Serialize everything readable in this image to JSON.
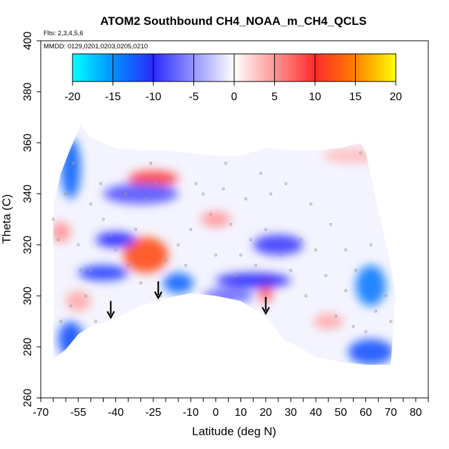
{
  "chart_data": {
    "type": "heatmap",
    "title": "ATOM2 Southbound CH4_NOAA_m_CH4_QCLS",
    "flights_label": "Flts: 2,3,4,5,6",
    "dates_label": "MMDD: 0129,0201,0203,0205,0210",
    "xlabel": "Latitude (deg N)",
    "ylabel": "Theta (C)",
    "xlim": [
      -70,
      85
    ],
    "ylim": [
      260,
      400
    ],
    "x_ticks": [
      -70,
      -55,
      -40,
      -25,
      -10,
      0,
      10,
      20,
      30,
      40,
      50,
      60,
      70,
      80
    ],
    "x_minor_ticks": [
      -65,
      -60,
      -50,
      -45,
      -35,
      -30,
      -20,
      -15,
      -5,
      5,
      15,
      25,
      35,
      45,
      55,
      65,
      75,
      85
    ],
    "y_ticks": [
      260,
      280,
      300,
      320,
      340,
      360,
      380,
      400
    ],
    "grid": false,
    "colorbar": {
      "ticks": [
        -20,
        -15,
        -10,
        -5,
        0,
        5,
        10,
        15,
        20
      ],
      "range": [
        -20,
        20
      ],
      "colors": [
        "#00ffff",
        "#0080ff",
        "#2020ff",
        "#ffffff",
        "#ff2020",
        "#ff8000",
        "#ffff00"
      ],
      "placement": "top"
    },
    "envelope": {
      "lower": [
        [
          -65,
          275
        ],
        [
          -60,
          279
        ],
        [
          -55,
          285
        ],
        [
          -50,
          288
        ],
        [
          -43,
          290
        ],
        [
          -38,
          292
        ],
        [
          -30,
          296
        ],
        [
          -20,
          299
        ],
        [
          -10,
          301
        ],
        [
          0,
          300
        ],
        [
          10,
          298
        ],
        [
          20,
          292
        ],
        [
          27,
          283
        ],
        [
          33,
          280
        ],
        [
          40,
          276
        ],
        [
          50,
          274
        ],
        [
          60,
          273
        ],
        [
          70,
          273
        ]
      ],
      "upper": [
        [
          -65,
          335
        ],
        [
          -62,
          348
        ],
        [
          -58,
          358
        ],
        [
          -54,
          367
        ],
        [
          -50,
          362
        ],
        [
          -40,
          358
        ],
        [
          -30,
          357
        ],
        [
          -20,
          357
        ],
        [
          -10,
          356
        ],
        [
          0,
          355
        ],
        [
          10,
          355
        ],
        [
          20,
          358
        ],
        [
          30,
          357
        ],
        [
          40,
          357
        ],
        [
          50,
          358
        ],
        [
          58,
          360
        ],
        [
          60,
          356
        ],
        [
          70,
          312
        ],
        [
          72,
          300
        ]
      ]
    },
    "anomalies": [
      {
        "x": -28,
        "y": 316,
        "value": 12,
        "rx": 9,
        "ry": 7
      },
      {
        "x": -25,
        "y": 346,
        "value": 9,
        "rx": 10,
        "ry": 3
      },
      {
        "x": 20,
        "y": 303,
        "value": 7,
        "rx": 3,
        "ry": 6
      },
      {
        "x": -55,
        "y": 298,
        "value": 4,
        "rx": 5,
        "ry": 4
      },
      {
        "x": -62,
        "y": 325,
        "value": 5,
        "rx": 4,
        "ry": 4
      },
      {
        "x": 0,
        "y": 330,
        "value": 5,
        "rx": 6,
        "ry": 3
      },
      {
        "x": 45,
        "y": 290,
        "value": 4,
        "rx": 6,
        "ry": 3
      },
      {
        "x": 55,
        "y": 355,
        "value": 3,
        "rx": 12,
        "ry": 3
      },
      {
        "x": -58,
        "y": 350,
        "value": -13,
        "rx": 4,
        "ry": 12
      },
      {
        "x": -58,
        "y": 283,
        "value": -12,
        "rx": 5,
        "ry": 7
      },
      {
        "x": -15,
        "y": 305,
        "value": -13,
        "rx": 6,
        "ry": 4
      },
      {
        "x": -45,
        "y": 309,
        "value": -11,
        "rx": 10,
        "ry": 3
      },
      {
        "x": -40,
        "y": 322,
        "value": -10,
        "rx": 8,
        "ry": 3
      },
      {
        "x": 62,
        "y": 304,
        "value": -14,
        "rx": 6,
        "ry": 8
      },
      {
        "x": 62,
        "y": 278,
        "value": -12,
        "rx": 9,
        "ry": 5
      },
      {
        "x": 15,
        "y": 306,
        "value": -10,
        "rx": 15,
        "ry": 3
      },
      {
        "x": -30,
        "y": 340,
        "value": -8,
        "rx": 15,
        "ry": 4
      },
      {
        "x": 25,
        "y": 320,
        "value": -9,
        "rx": 10,
        "ry": 4
      },
      {
        "x": 5,
        "y": 300,
        "value": -7,
        "rx": 10,
        "ry": 3
      }
    ],
    "arrows_x": [
      -42,
      -23,
      20
    ],
    "sample_points": [
      [
        -65,
        330
      ],
      [
        -63,
        322
      ],
      [
        -60,
        340
      ],
      [
        -57,
        352
      ],
      [
        -55,
        320
      ],
      [
        -52,
        300
      ],
      [
        -50,
        310
      ],
      [
        -48,
        290
      ],
      [
        -45,
        330
      ],
      [
        -40,
        318
      ],
      [
        -35,
        312
      ],
      [
        -30,
        305
      ],
      [
        -28,
        338
      ],
      [
        -24,
        344
      ],
      [
        -22,
        300
      ],
      [
        -18,
        346
      ],
      [
        -15,
        320
      ],
      [
        -12,
        312
      ],
      [
        -10,
        326
      ],
      [
        -5,
        340
      ],
      [
        -2,
        332
      ],
      [
        0,
        316
      ],
      [
        3,
        342
      ],
      [
        6,
        328
      ],
      [
        8,
        308
      ],
      [
        12,
        338
      ],
      [
        14,
        322
      ],
      [
        16,
        312
      ],
      [
        20,
        326
      ],
      [
        22,
        340
      ],
      [
        26,
        316
      ],
      [
        30,
        310
      ],
      [
        34,
        322
      ],
      [
        36,
        300
      ],
      [
        40,
        318
      ],
      [
        44,
        308
      ],
      [
        48,
        292
      ],
      [
        52,
        302
      ],
      [
        55,
        288
      ],
      [
        58,
        356
      ],
      [
        60,
        286
      ],
      [
        62,
        320
      ],
      [
        64,
        294
      ],
      [
        66,
        282
      ],
      [
        68,
        300
      ],
      [
        70,
        290
      ],
      [
        -62,
        290
      ],
      [
        -58,
        296
      ],
      [
        -54,
        310
      ],
      [
        -50,
        336
      ],
      [
        -46,
        344
      ],
      [
        -42,
        324
      ],
      [
        -36,
        340
      ],
      [
        -32,
        326
      ],
      [
        -26,
        352
      ],
      [
        -20,
        314
      ],
      [
        -8,
        344
      ],
      [
        4,
        352
      ],
      [
        10,
        316
      ],
      [
        18,
        348
      ],
      [
        28,
        344
      ],
      [
        38,
        336
      ],
      [
        46,
        328
      ],
      [
        52,
        318
      ],
      [
        56,
        310
      ]
    ]
  }
}
